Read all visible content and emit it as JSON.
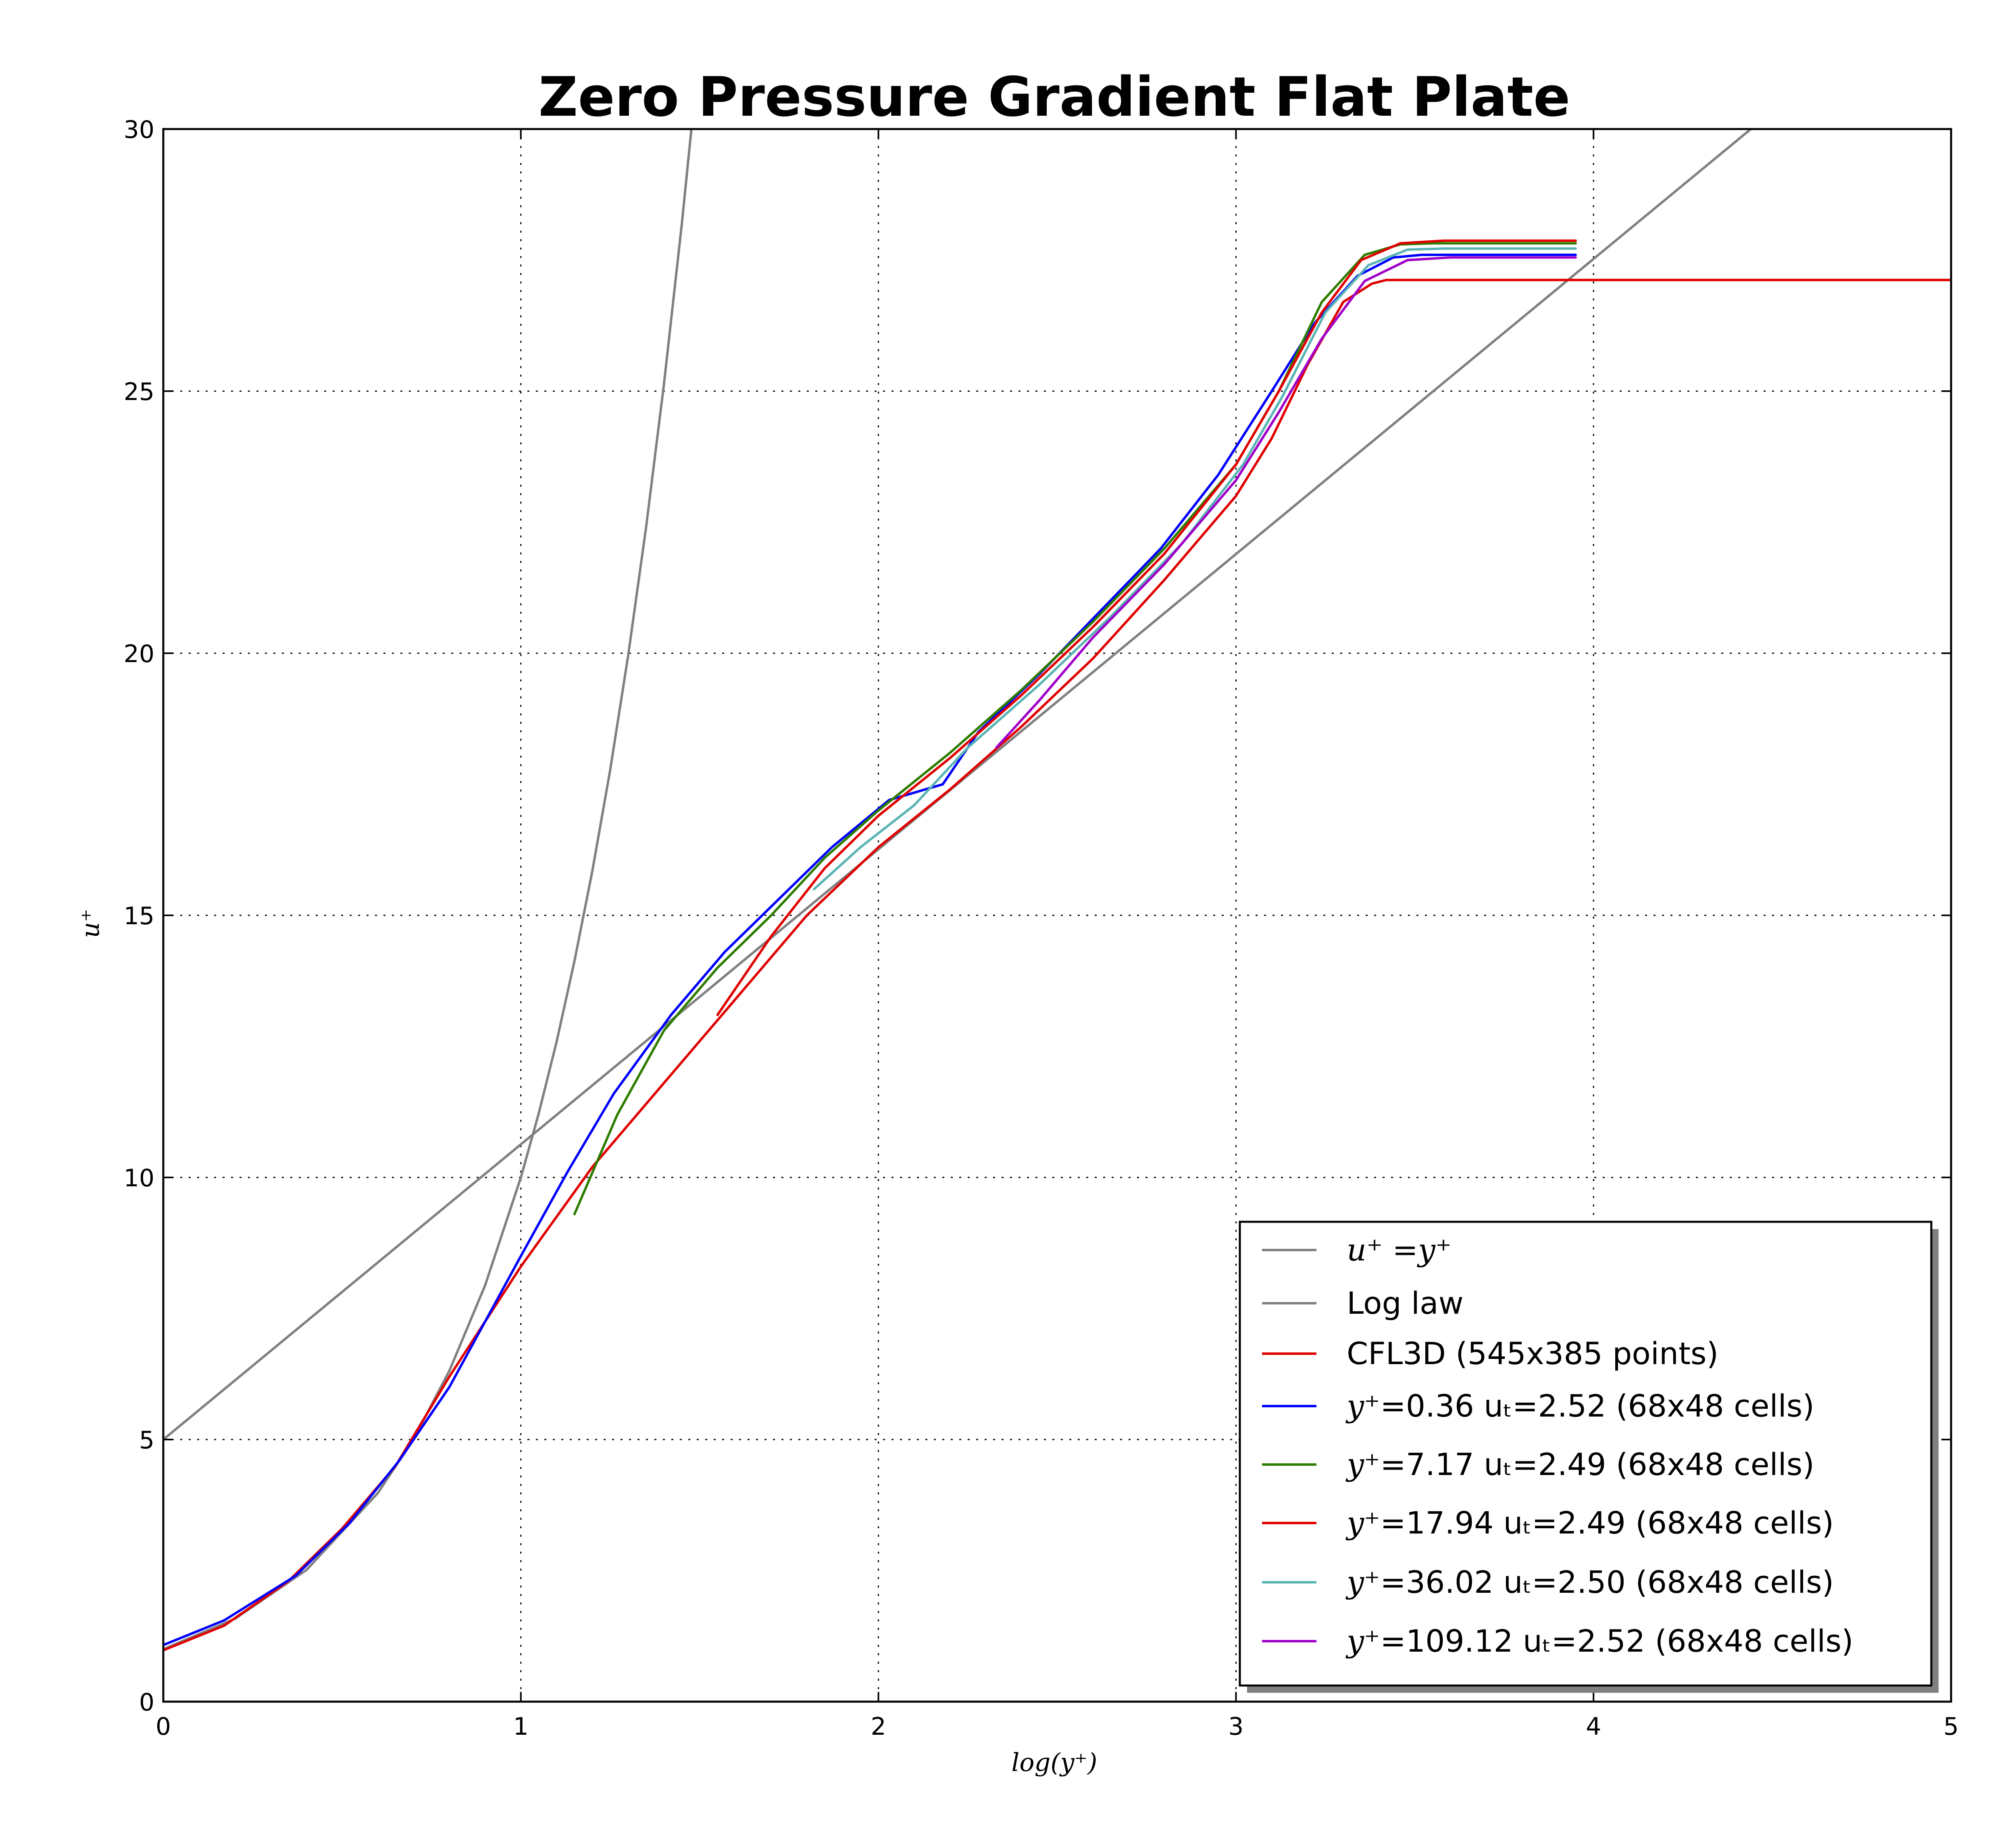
{
  "chart_data": {
    "type": "line",
    "title": "Zero Pressure Gradient Flat Plate",
    "xlabel": "log(y⁺)",
    "ylabel": "u⁺",
    "xlim": [
      0,
      5
    ],
    "ylim": [
      0,
      30
    ],
    "xticks": [
      "0",
      "1",
      "2",
      "3",
      "4",
      "5"
    ],
    "yticks": [
      "0",
      "5",
      "10",
      "15",
      "20",
      "25",
      "30"
    ],
    "grid": true,
    "legend_position": "lower-right",
    "series": [
      {
        "name": "u⁺ =y⁺",
        "legend_math": "u⁺ =y⁺",
        "legend_text": "",
        "color": "#808080",
        "x": [
          0,
          0.2,
          0.4,
          0.6,
          0.7,
          0.8,
          0.9,
          1.0,
          1.05,
          1.1,
          1.15,
          1.2,
          1.25,
          1.3,
          1.35,
          1.4,
          1.45,
          1.477
        ],
        "y": [
          1.0,
          1.58,
          2.51,
          3.98,
          5.01,
          6.31,
          7.94,
          10.0,
          11.22,
          12.59,
          14.13,
          15.85,
          17.78,
          19.95,
          22.39,
          25.12,
          28.18,
          30.0
        ]
      },
      {
        "name": "Log law",
        "legend_math": "",
        "legend_text": "Log law",
        "color": "#808080",
        "x": [
          0,
          4.44
        ],
        "y": [
          5.0,
          30.0
        ]
      },
      {
        "name": "CFL3D (545x385 points)",
        "legend_math": "",
        "legend_text": "CFL3D (545x385 points)",
        "color": "#e00000",
        "x": [
          0.0,
          0.17,
          0.35,
          0.5,
          0.65,
          0.8,
          1.0,
          1.2,
          1.4,
          1.6,
          1.8,
          2.0,
          2.2,
          2.4,
          2.6,
          2.8,
          3.0,
          3.1,
          3.2,
          3.3,
          3.38,
          3.42,
          3.5,
          4.0,
          5.0
        ],
        "y": [
          0.98,
          1.45,
          2.3,
          3.3,
          4.5,
          6.2,
          8.3,
          10.2,
          11.8,
          13.4,
          15.0,
          16.3,
          17.4,
          18.6,
          19.9,
          21.4,
          23.0,
          24.1,
          25.5,
          26.7,
          27.05,
          27.12,
          27.12,
          27.12,
          27.12
        ]
      },
      {
        "name": "y⁺=0.36 uₜ=2.52 (68x48 cells)",
        "legend_math": "y⁺",
        "legend_text": "=0.36 uₜ=2.52 (68x48 cells)",
        "color": "#0000ff",
        "x": [
          0.0,
          0.17,
          0.37,
          0.52,
          0.66,
          0.8,
          1.0,
          1.13,
          1.26,
          1.42,
          1.57,
          1.72,
          1.87,
          2.03,
          2.18,
          2.28,
          2.45,
          2.62,
          2.79,
          2.95,
          3.1,
          3.22,
          3.34,
          3.44,
          3.52,
          3.95
        ],
        "y": [
          1.08,
          1.55,
          2.4,
          3.4,
          4.6,
          6.0,
          8.5,
          10.1,
          11.6,
          13.1,
          14.3,
          15.3,
          16.3,
          17.2,
          17.5,
          18.5,
          19.6,
          20.8,
          22.0,
          23.4,
          25.0,
          26.3,
          27.2,
          27.55,
          27.6,
          27.6
        ]
      },
      {
        "name": "y⁺=7.17 uₜ=2.49 (68x48 cells)",
        "legend_math": "y⁺",
        "legend_text": "=7.17 uₜ=2.49 (68x48 cells)",
        "color": "#2e7d00",
        "x": [
          1.15,
          1.27,
          1.4,
          1.55,
          1.7,
          1.85,
          2.0,
          2.2,
          2.4,
          2.6,
          2.8,
          3.0,
          3.12,
          3.24,
          3.36,
          3.46,
          3.55,
          3.95
        ],
        "y": [
          9.3,
          11.2,
          12.8,
          14.0,
          15.0,
          16.1,
          17.0,
          18.1,
          19.3,
          20.6,
          22.0,
          23.6,
          25.0,
          26.7,
          27.6,
          27.8,
          27.82,
          27.82
        ]
      },
      {
        "name": "y⁺=17.94 uₜ=2.49 (68x48 cells)",
        "legend_math": "y⁺",
        "legend_text": "=17.94 uₜ=2.49 (68x48 cells)",
        "color": "#e00000",
        "x": [
          1.55,
          1.7,
          1.85,
          2.0,
          2.2,
          2.4,
          2.6,
          2.8,
          3.0,
          3.12,
          3.24,
          3.35,
          3.46,
          3.58,
          3.95
        ],
        "y": [
          13.1,
          14.6,
          15.9,
          16.9,
          18.0,
          19.2,
          20.5,
          21.9,
          23.6,
          25.0,
          26.5,
          27.5,
          27.82,
          27.87,
          27.87
        ]
      },
      {
        "name": "y⁺=36.02 uₜ=2.50 (68x48 cells)",
        "legend_math": "y⁺",
        "legend_text": "=36.02 uₜ=2.50 (68x48 cells)",
        "color": "#5ab4b4",
        "x": [
          1.82,
          1.95,
          2.1,
          2.25,
          2.45,
          2.65,
          2.85,
          3.02,
          3.13,
          3.25,
          3.37,
          3.48,
          3.58,
          3.95
        ],
        "y": [
          15.5,
          16.3,
          17.1,
          18.2,
          19.4,
          20.7,
          22.1,
          23.6,
          24.9,
          26.5,
          27.4,
          27.7,
          27.72,
          27.72
        ]
      },
      {
        "name": "y⁺=109.12 uₜ=2.52 (68x48 cells)",
        "legend_math": "y⁺",
        "legend_text": "=109.12 uₜ=2.52 (68x48 cells)",
        "color": "#a000c8",
        "x": [
          2.33,
          2.45,
          2.6,
          2.8,
          3.0,
          3.12,
          3.24,
          3.36,
          3.48,
          3.6,
          3.95
        ],
        "y": [
          18.2,
          19.1,
          20.3,
          21.7,
          23.3,
          24.6,
          26.0,
          27.1,
          27.5,
          27.55,
          27.55
        ]
      }
    ]
  }
}
